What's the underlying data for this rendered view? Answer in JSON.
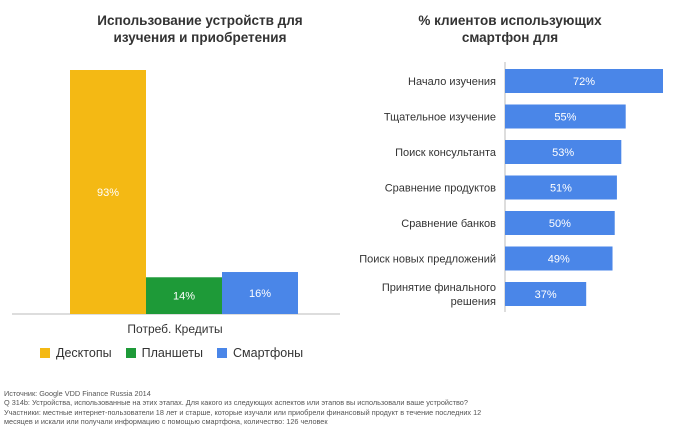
{
  "chart_data": [
    {
      "type": "bar",
      "title": "Использование устройств для изучения и приобретения",
      "title_lines": [
        "Использование устройств для",
        "изучения и приобретения"
      ],
      "categories": [
        "Потреб. Кредиты"
      ],
      "series": [
        {
          "name": "Десктопы",
          "values": [
            93
          ],
          "label": "93%",
          "color": "#F4B914"
        },
        {
          "name": "Планшеты",
          "values": [
            14
          ],
          "label": "14%",
          "color": "#1E9A38"
        },
        {
          "name": "Смартфоны",
          "values": [
            16
          ],
          "label": "16%",
          "color": "#4A86E8"
        }
      ],
      "ylim": [
        0,
        100
      ],
      "xlabel": "Потреб. Кредиты",
      "legend": "bottom"
    },
    {
      "type": "bar",
      "orientation": "horizontal",
      "title": "% клиентов использующих смартфон для",
      "title_lines": [
        "% клиентов использующих",
        "смартфон для"
      ],
      "color": "#4A86E8",
      "categories": [
        [
          "Начало изучения"
        ],
        [
          "Тщательное изучение"
        ],
        [
          "Поиск консультанта"
        ],
        [
          "Сравнение продуктов"
        ],
        [
          "Сравнение банков"
        ],
        [
          "Поиск новых предложений"
        ],
        [
          "Принятие финального",
          "решения"
        ]
      ],
      "values": [
        72,
        55,
        53,
        51,
        50,
        49,
        37
      ],
      "labels": [
        "72%",
        "55%",
        "53%",
        "51%",
        "50%",
        "49%",
        "37%"
      ],
      "xlim": [
        0,
        72
      ]
    }
  ],
  "footnote": {
    "lines": [
      "Источник: Google VDD Finance Russia 2014",
      "Q 314b: Устройства, использованные на этих этапах. Для какого из следующих аспектов или этапов вы использовали ваше устройство?",
      "Участники: местные интернет-пользователи  18 лет и старше, которые изучали или приобрели финансовый продукт в течение последних 12",
      "месяцев и искали или получали информацию с помощью смартфона, количество: 126 человек"
    ]
  }
}
